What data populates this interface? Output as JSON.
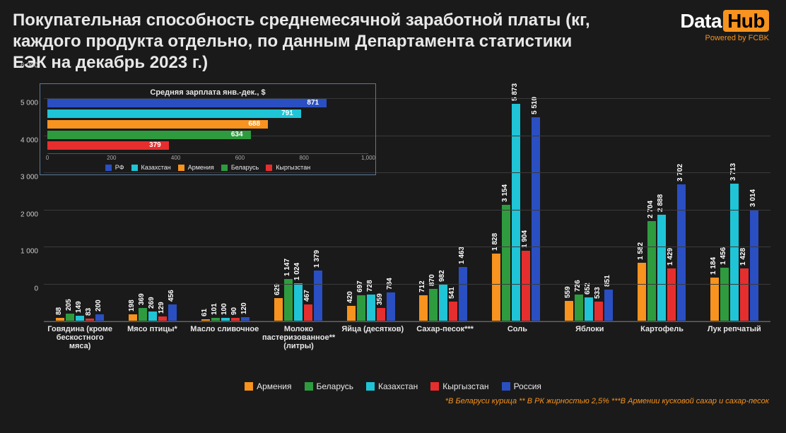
{
  "title": "Покупательная способность среднемесячной заработной платы (кг, каждого продукта отдельно, по данным Департамента статистики ЕЭК на декабрь 2023 г.)",
  "logo": {
    "part1": "Data",
    "part2": "Hub",
    "bg": "#f7931e"
  },
  "powered": "Powered by FCBK",
  "footnote": "*В Беларуси курица ** В РК жирностью 2,5% ***В Армении кусковой сахар и сахар-песок",
  "colors": {
    "armenia": "#f7931e",
    "belarus": "#2e9b3f",
    "kazakhstan": "#1fc4d6",
    "kyrgyzstan": "#e62e2e",
    "russia": "#2a4fc2",
    "grid": "#3a3a3a",
    "bg": "#1a1a1a"
  },
  "main_chart": {
    "type": "grouped-bar",
    "ylim": [
      0,
      6500
    ],
    "yticks": [
      0,
      1000,
      2000,
      3000,
      4000,
      5000,
      6000
    ],
    "ytick_labels": [
      "0",
      "1 000",
      "2 000",
      "3 000",
      "4 000",
      "5 000",
      "6 000"
    ],
    "series_order": [
      "armenia",
      "belarus",
      "kazakhstan",
      "kyrgyzstan",
      "russia"
    ],
    "categories": [
      {
        "label": "Говядина (кроме бескостного мяса)",
        "values": [
          88,
          205,
          149,
          83,
          200
        ]
      },
      {
        "label": "Мясо птицы*",
        "values": [
          198,
          369,
          269,
          129,
          456
        ]
      },
      {
        "label": "Масло сливочное",
        "values": [
          61,
          101,
          100,
          90,
          120
        ]
      },
      {
        "label": "Молоко пастеризованное** (литры)",
        "values": [
          629,
          1147,
          1024,
          467,
          1379
        ]
      },
      {
        "label": "Яйца (десятков)",
        "values": [
          420,
          697,
          728,
          359,
          784
        ]
      },
      {
        "label": "Сахар-песок***",
        "values": [
          712,
          870,
          982,
          541,
          1463
        ]
      },
      {
        "label": "Соль",
        "values": [
          1828,
          3154,
          5873,
          1904,
          5510
        ]
      },
      {
        "label": "Яблоки",
        "values": [
          559,
          726,
          652,
          533,
          851
        ]
      },
      {
        "label": "Картофель",
        "values": [
          1582,
          2704,
          2888,
          1429,
          3702
        ]
      },
      {
        "label": "Лук репчатый",
        "values": [
          1184,
          1456,
          3713,
          1428,
          3014
        ]
      }
    ],
    "legend": [
      "Армения",
      "Беларусь",
      "Казахстан",
      "Кыргызстан",
      "Россия"
    ]
  },
  "inset_chart": {
    "type": "horizontal-bar",
    "title": "Средняя зарплата янв.-дек., $",
    "xlim": [
      0,
      1000
    ],
    "xticks": [
      0,
      200,
      400,
      600,
      800,
      1000
    ],
    "xtick_labels": [
      "0",
      "200",
      "400",
      "600",
      "800",
      "1,000"
    ],
    "bars": [
      {
        "label": "871",
        "value": 871,
        "color_key": "russia"
      },
      {
        "label": "791",
        "value": 791,
        "color_key": "kazakhstan"
      },
      {
        "label": "688",
        "value": 688,
        "color_key": "armenia"
      },
      {
        "label": "634",
        "value": 634,
        "color_key": "belarus"
      },
      {
        "label": "379",
        "value": 379,
        "color_key": "kyrgyzstan"
      }
    ],
    "legend": [
      {
        "label": "РФ",
        "color_key": "russia"
      },
      {
        "label": "Казахстан",
        "color_key": "kazakhstan"
      },
      {
        "label": "Армения",
        "color_key": "armenia"
      },
      {
        "label": "Беларусь",
        "color_key": "belarus"
      },
      {
        "label": "Кыргызстан",
        "color_key": "kyrgyzstan"
      }
    ]
  }
}
